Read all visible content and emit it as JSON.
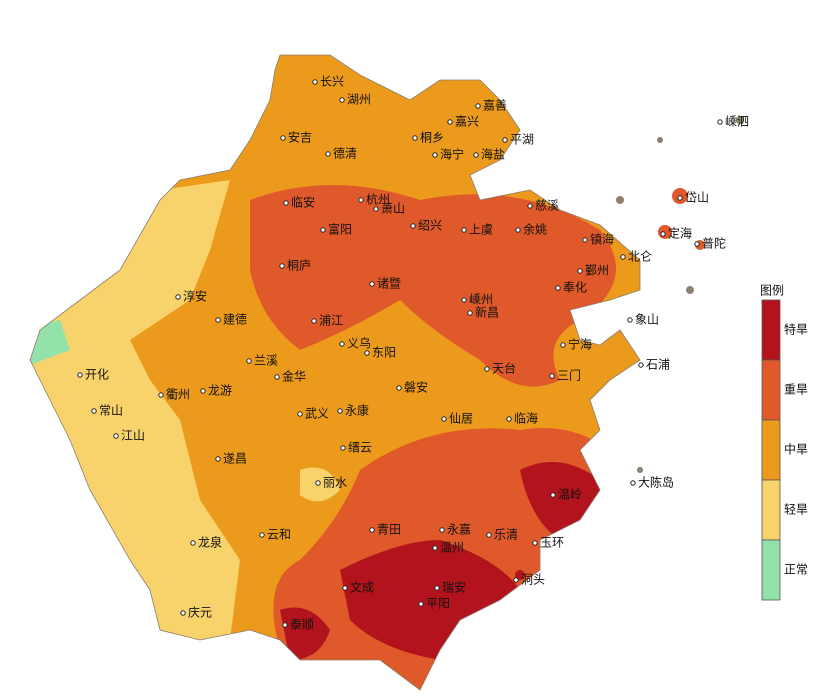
{
  "legend": {
    "title": "图例",
    "items": [
      {
        "label": "特旱",
        "color": "#b3131c"
      },
      {
        "label": "重旱",
        "color": "#e0592a"
      },
      {
        "label": "中旱",
        "color": "#ec9a1c"
      },
      {
        "label": "轻旱",
        "color": "#f8d36c"
      },
      {
        "label": "正常",
        "color": "#93e2aa"
      }
    ]
  },
  "cities": [
    "长兴",
    "湖州",
    "嘉善",
    "嘉兴",
    "平湖",
    "嵊泗",
    "安吉",
    "桐乡",
    "德清",
    "海宁",
    "海盐",
    "岱山",
    "临安",
    "杭州",
    "萧山",
    "慈溪",
    "富阳",
    "绍兴",
    "上虞",
    "余姚",
    "镇海",
    "定海",
    "普陀",
    "北仑",
    "桐庐",
    "鄞州",
    "诸暨",
    "奉化",
    "淳安",
    "嵊州",
    "新昌",
    "建德",
    "浦江",
    "象山",
    "义乌",
    "东阳",
    "宁海",
    "兰溪",
    "开化",
    "金华",
    "天台",
    "三门",
    "石浦",
    "衢州",
    "龙游",
    "磐安",
    "常山",
    "武义",
    "永康",
    "仙居",
    "临海",
    "江山",
    "缙云",
    "遂昌",
    "丽水",
    "大陈岛",
    "温岭",
    "龙泉",
    "云和",
    "青田",
    "永嘉",
    "乐清",
    "玉环",
    "温州",
    "洞头",
    "文成",
    "瑞安",
    "平阳",
    "庆元",
    "泰顺"
  ]
}
